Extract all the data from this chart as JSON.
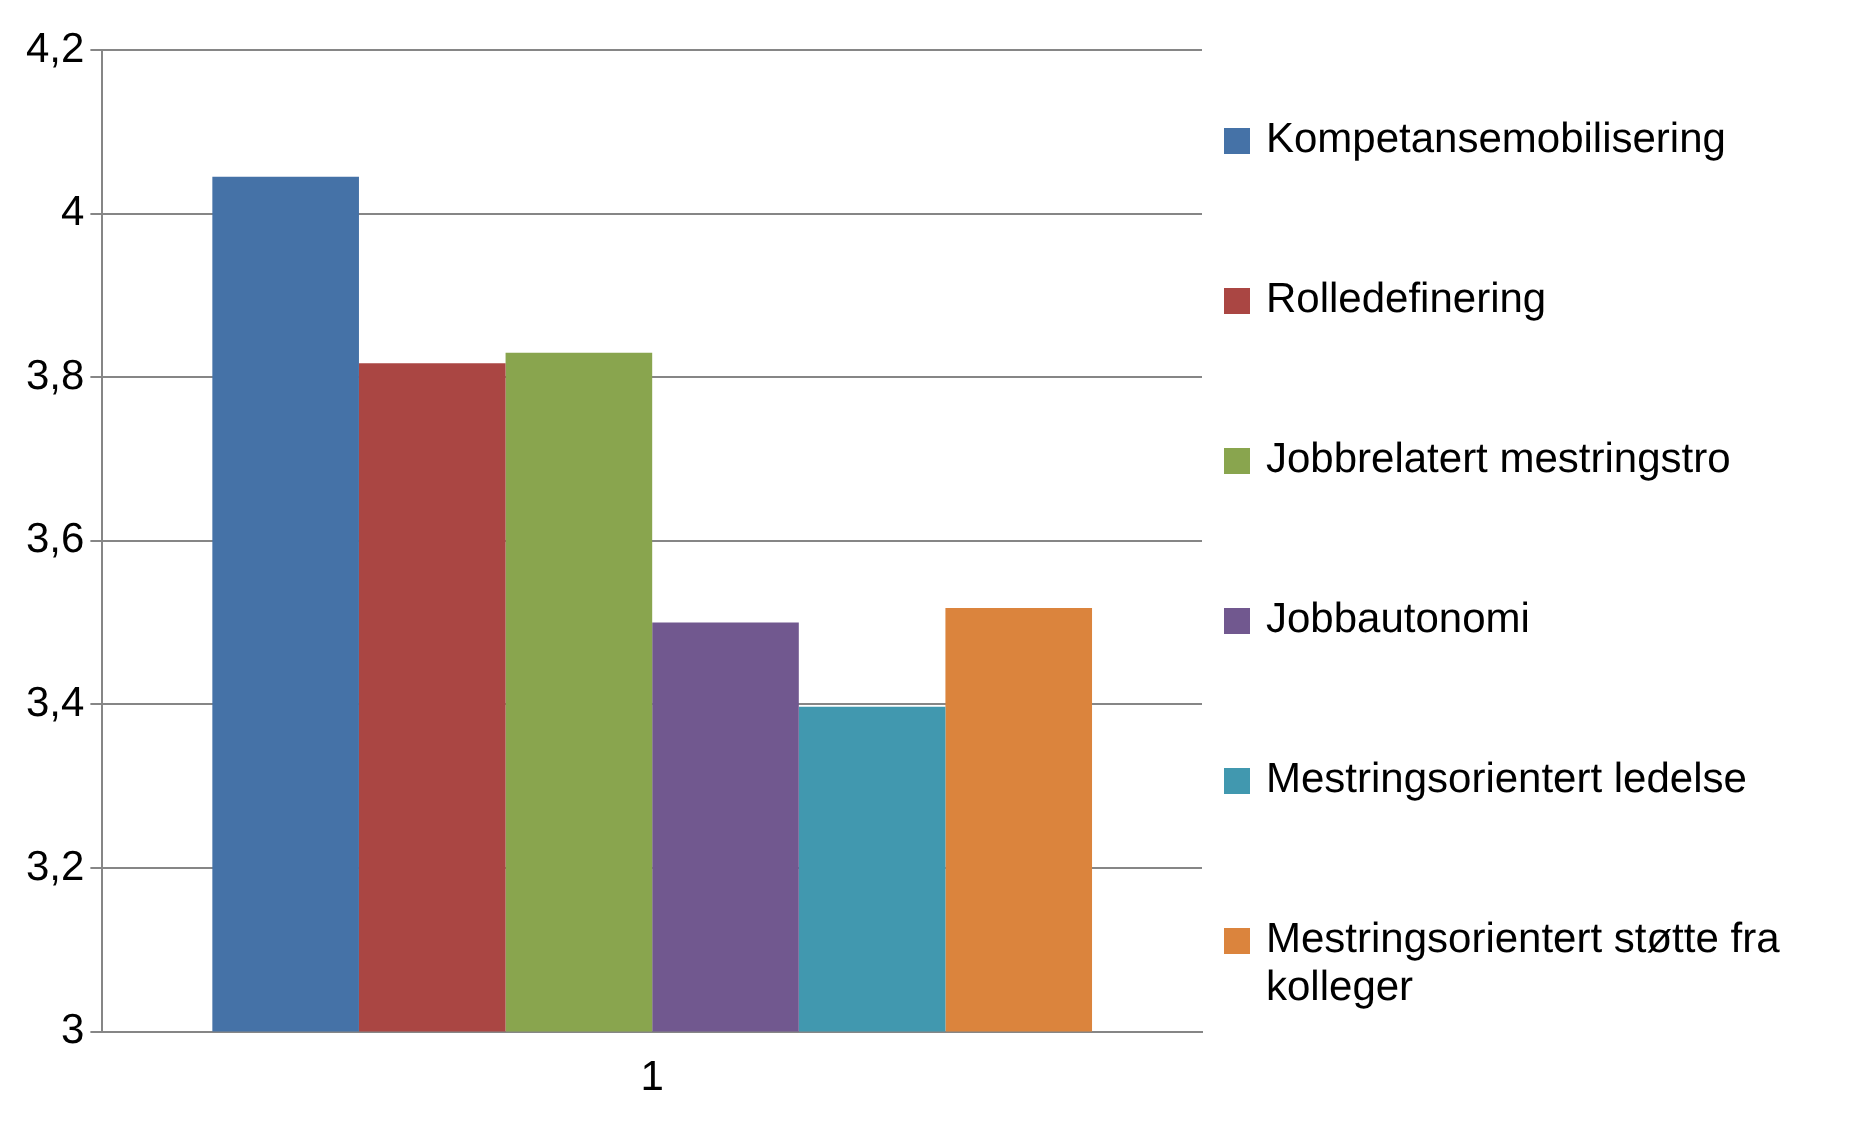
{
  "chart_data": {
    "type": "bar",
    "categories": [
      "1"
    ],
    "series": [
      {
        "name": "Kompetansemobilisering",
        "color": "#4572a7",
        "values": [
          4.045
        ]
      },
      {
        "name": "Rolledefinering",
        "color": "#aa4643",
        "values": [
          3.817
        ]
      },
      {
        "name": "Jobbrelatert mestringstro",
        "color": "#89a54e",
        "values": [
          3.83
        ]
      },
      {
        "name": "Jobbautonomi",
        "color": "#71588f",
        "values": [
          3.5
        ]
      },
      {
        "name": "Mestringsorientert ledelse",
        "color": "#4198af",
        "values": [
          3.397
        ]
      },
      {
        "name": "Mestringsorientert støtte fra kolleger",
        "color": "#db843d",
        "values": [
          3.518
        ]
      }
    ],
    "ylim": [
      3,
      4.2
    ],
    "yticks": [
      3,
      {
        "value": 3.2,
        "label": "3,2"
      },
      {
        "value": 3.4,
        "label": "3,4"
      },
      {
        "value": 3.6,
        "label": "3,6"
      },
      {
        "value": 3.8,
        "label": "3,8"
      },
      4,
      {
        "value": 4.2,
        "label": "4,2"
      }
    ],
    "grid": "y",
    "legend": "right"
  }
}
